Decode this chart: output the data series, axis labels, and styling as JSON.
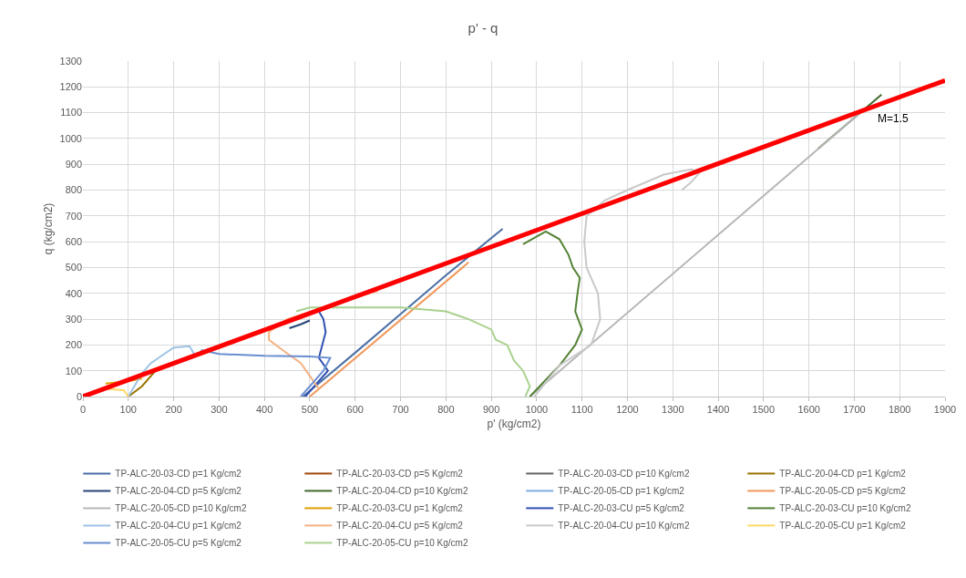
{
  "chart_data": {
    "type": "line",
    "title": "p' - q",
    "xlabel": "p' (kg/cm2)",
    "ylabel": "q (kg/cm2)",
    "xlim": [
      0,
      1900
    ],
    "ylim": [
      0,
      1300
    ],
    "xticks": [
      0,
      100,
      200,
      300,
      400,
      500,
      600,
      700,
      800,
      900,
      1000,
      1100,
      1200,
      1300,
      1400,
      1500,
      1600,
      1700,
      1800,
      1900
    ],
    "yticks": [
      0,
      100,
      200,
      300,
      400,
      500,
      600,
      700,
      800,
      900,
      1000,
      1100,
      1200,
      1300
    ],
    "grid": true,
    "legend": "bottom",
    "marker": "none",
    "line_style": "solid",
    "annotations": [
      "M=1.5"
    ],
    "series": [
      {
        "name": "TP-ALC-20-03-CD p=1 Kg/cm2",
        "color": "#4a6fa5",
        "x": [
          485,
          600,
          700,
          800,
          925
        ],
        "values": [
          0,
          170,
          320,
          470,
          650
        ]
      },
      {
        "name": "TP-ALC-20-03-CD p=5 Kg/cm2",
        "color": "#9e480e"
      },
      {
        "name": "TP-ALC-20-03-CD p=10 Kg/cm2",
        "color": "#636363"
      },
      {
        "name": "TP-ALC-20-04-CD p=1 Kg/cm2",
        "color": "#997300",
        "x": [
          100,
          130,
          160
        ],
        "values": [
          0,
          40,
          100
        ]
      },
      {
        "name": "TP-ALC-20-04-CD p=5 Kg/cm2",
        "color": "#264478",
        "x": [
          455,
          480,
          500
        ],
        "values": [
          265,
          280,
          295
        ]
      },
      {
        "name": "TP-ALC-20-04-CD p=10 Kg/cm2",
        "color": "#43682b",
        "x": [
          1620,
          1760
        ],
        "values": [
          960,
          1170
        ]
      },
      {
        "name": "TP-ALC-20-05-CD p=1 Kg/cm2",
        "color": "#7cafdd"
      },
      {
        "name": "TP-ALC-20-05-CD p=5 Kg/cm2",
        "color": "#f1975a",
        "x": [
          500,
          850
        ],
        "values": [
          0,
          520
        ]
      },
      {
        "name": "TP-ALC-20-05-CD p=10 Kg/cm2",
        "color": "#b7b7b7",
        "x": [
          985,
          1720
        ],
        "values": [
          0,
          1110
        ]
      },
      {
        "name": "TP-ALC-20-03-CU p=1 Kg/cm2",
        "color": "#e0a000",
        "x": [
          50,
          100,
          130
        ],
        "values": [
          50,
          60,
          70
        ]
      },
      {
        "name": "TP-ALC-20-03-CU p=5 Kg/cm2",
        "color": "#3050b0",
        "x": [
          490,
          520,
          540,
          520,
          535,
          530,
          520
        ],
        "values": [
          0,
          60,
          100,
          150,
          250,
          300,
          330
        ]
      },
      {
        "name": "TP-ALC-20-03-CU p=10 Kg/cm2",
        "color": "#548235",
        "x": [
          985,
          1050,
          1085,
          1100,
          1085,
          1090,
          1095,
          1080,
          1070,
          1050,
          1020,
          970
        ],
        "values": [
          0,
          120,
          200,
          260,
          330,
          400,
          460,
          500,
          550,
          610,
          640,
          590
        ]
      },
      {
        "name": "TP-ALC-20-04-CU p=1 Kg/cm2",
        "color": "#9dc3e6",
        "x": [
          100,
          130,
          150,
          200,
          235,
          245
        ],
        "values": [
          0,
          90,
          130,
          190,
          195,
          165
        ]
      },
      {
        "name": "TP-ALC-20-04-CU p=5 Kg/cm2",
        "color": "#f4b183",
        "x": [
          520,
          500,
          480,
          440,
          410,
          410,
          450,
          520,
          650
        ],
        "values": [
          30,
          80,
          130,
          180,
          220,
          250,
          300,
          340,
          410
        ]
      },
      {
        "name": "TP-ALC-20-04-CU p=10 Kg/cm2",
        "color": "#c9c9c9",
        "x": [
          995,
          1050,
          1120,
          1140,
          1135,
          1110,
          1105,
          1110,
          1150,
          1200,
          1280,
          1340,
          1360,
          1340,
          1320
        ],
        "values": [
          0,
          120,
          200,
          300,
          400,
          500,
          600,
          700,
          760,
          800,
          860,
          880,
          870,
          830,
          800
        ]
      },
      {
        "name": "TP-ALC-20-05-CU p=1 Kg/cm2",
        "color": "#ffd966",
        "x": [
          100,
          90,
          50
        ],
        "values": [
          0,
          25,
          30
        ]
      },
      {
        "name": "TP-ALC-20-05-CU p=5 Kg/cm2",
        "color": "#698ed0",
        "x": [
          260,
          300,
          400,
          500,
          545,
          530,
          505,
          480
        ],
        "values": [
          180,
          165,
          158,
          155,
          150,
          100,
          50,
          0
        ]
      },
      {
        "name": "TP-ALC-20-05-CU p=10 Kg/cm2",
        "color": "#a9d18e",
        "x": [
          975,
          985,
          970,
          950,
          935,
          910,
          900,
          850,
          800,
          700,
          500,
          470
        ],
        "values": [
          0,
          40,
          100,
          140,
          200,
          220,
          260,
          300,
          330,
          345,
          345,
          330
        ]
      },
      {
        "color": "#ff0000",
        "x": [
          0,
          1900
        ],
        "values": [
          0,
          1225
        ]
      }
    ]
  }
}
